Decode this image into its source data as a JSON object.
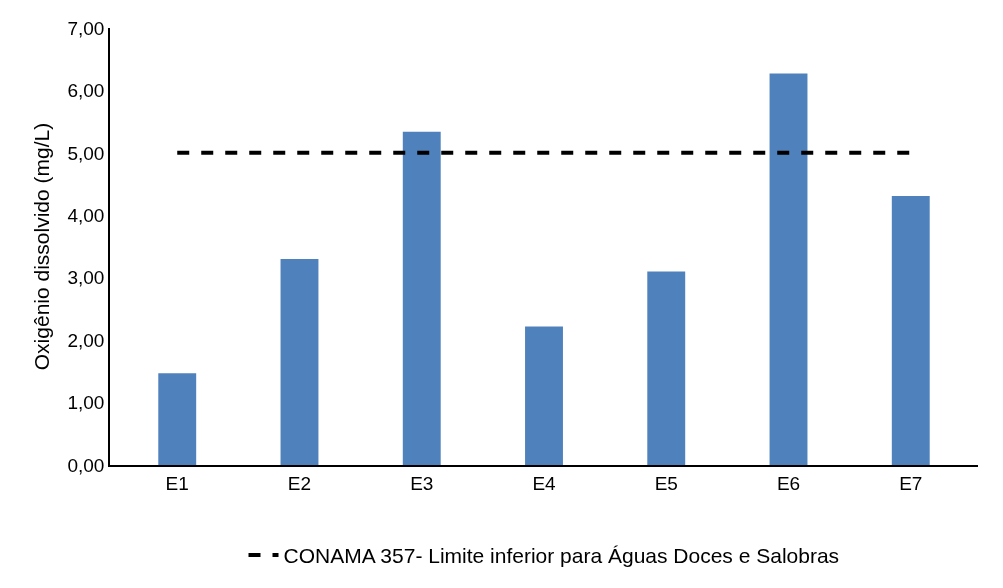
{
  "chart_data": {
    "type": "bar",
    "ylabel": "Oxigênio dissolvido (mg/L)",
    "categories": [
      "E1",
      "E2",
      "E3",
      "E4",
      "E5",
      "E6",
      "E7"
    ],
    "series": [
      {
        "color": "#4f81bd",
        "values": [
          1.47,
          3.3,
          5.34,
          2.22,
          3.1,
          6.27,
          4.31
        ]
      },
      {
        "type": "line",
        "name": "CONAMA 357- Limite inferior para Águas Doces e Salobras",
        "color": "#000000",
        "values": [
          5,
          5,
          5,
          5,
          5,
          5,
          5
        ],
        "line_style": "dashed",
        "marker": "none"
      }
    ],
    "ylim": [
      0,
      7
    ],
    "yticks": [
      {
        "value": 0,
        "label": "0,00"
      },
      {
        "value": 1,
        "label": "1,00"
      },
      {
        "value": 2,
        "label": "2,00"
      },
      {
        "value": 3,
        "label": "3,00"
      },
      {
        "value": 4,
        "label": "4,00"
      },
      {
        "value": 5,
        "label": "5,00"
      },
      {
        "value": 6,
        "label": "6,00"
      },
      {
        "value": 7,
        "label": "7,00"
      }
    ],
    "grid": false,
    "legend": "bottom"
  }
}
